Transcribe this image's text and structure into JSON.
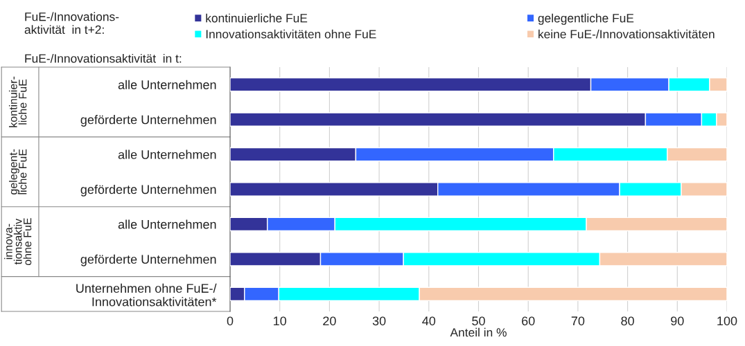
{
  "chart_data": {
    "type": "bar",
    "orientation": "horizontal",
    "stacked": true,
    "xlabel": "Anteil in %",
    "legend_title": "FuE-/Innovations-\naktivität  in t+2:",
    "categories": [
      "alle Unternehmen",
      "geförderte Unternehmen",
      "alle Unternehmen",
      "geförderte Unternehmen",
      "alle Unternehmen",
      "geförderte Unternehmen",
      "Unternehmen ohne FuE-/\nInnovationsaktivitäten*"
    ],
    "series": [
      {
        "name": "kontinuierliche FuE",
        "color": "#333399",
        "values": [
          72.6,
          83.6,
          25.3,
          41.8,
          7.5,
          18.2,
          2.9
        ]
      },
      {
        "name": "gelegentliche FuE",
        "color": "#3366ff",
        "values": [
          15.7,
          11.3,
          39.8,
          36.6,
          13.6,
          16.7,
          6.9
        ]
      },
      {
        "name": "Innovationsaktivitäten ohne FuE",
        "color": "#00ffff",
        "values": [
          8.2,
          3.0,
          22.9,
          12.4,
          50.6,
          39.5,
          28.3
        ]
      },
      {
        "name": "keine FuE-/Innovationsaktivitäten",
        "color": "#f8cbad",
        "values": [
          3.5,
          2.1,
          12.0,
          9.2,
          28.3,
          25.6,
          61.9
        ]
      }
    ],
    "annotations": [
      "FuE-/Innovationsaktivität  in t:",
      "kontinuier-\nliche FuE",
      "gelegent-\nliche FuE",
      "innova-\ntionsaktiv\nohne FuE"
    ],
    "xlim": [
      0,
      100
    ],
    "xticks": [
      0,
      10,
      20,
      30,
      40,
      50,
      60,
      70,
      80,
      90,
      100
    ],
    "grid": "x",
    "legend": "top"
  }
}
